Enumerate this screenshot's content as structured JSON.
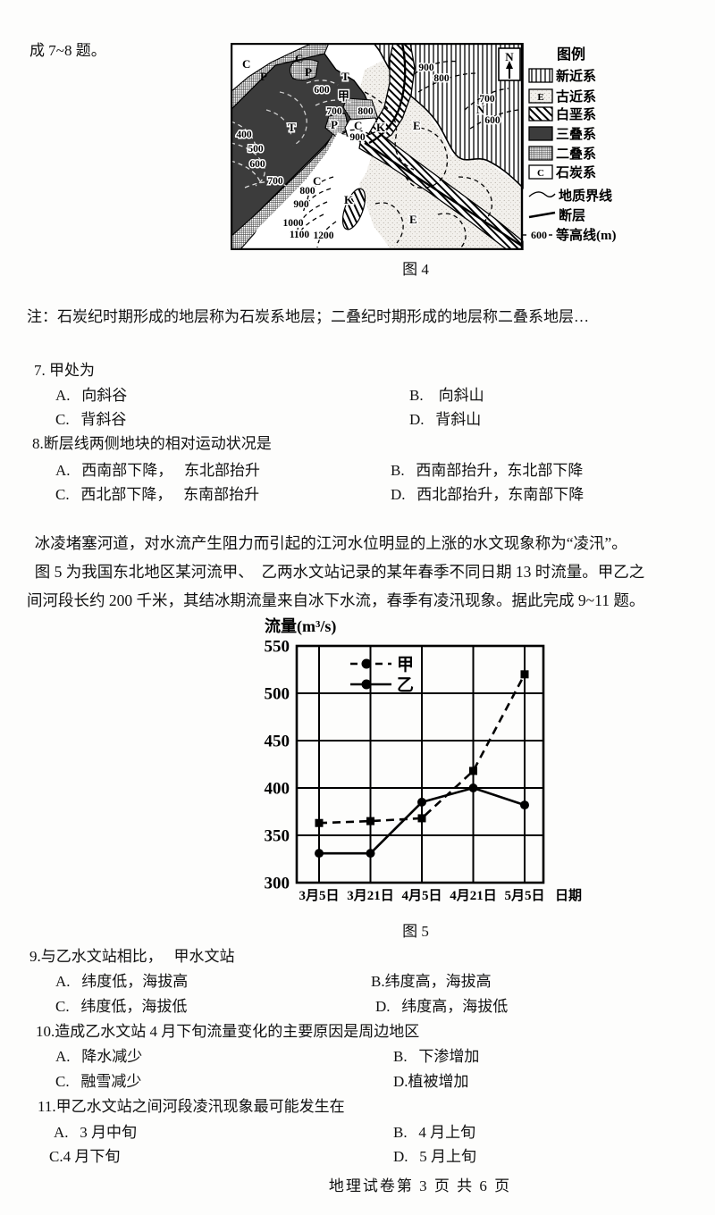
{
  "page": {
    "intro": "成 7~8 题。",
    "footer": "地理试卷第 3 页 共 6 页"
  },
  "note": "注：石炭纪时期形成的地层称为石炭系地层；二叠纪时期形成的地层称二叠系地层…",
  "passage": {
    "line1": "  冰凌堵塞河道，对水流产生阻力而引起的江河水位明显的上涨的水文现象称为“凌汛”。",
    "line2": "  图 5 为我国东北地区某河流甲、  乙两水文站记录的某年春季不同日期 13 时流量。甲乙之",
    "line3": "间河段长约 200 千米，其结冰期流量来自冰下水流，春季有凌汛现象。据此完成 9~11 题。"
  },
  "figure4": {
    "caption": "图 4",
    "map": {
      "letters": {
        "tl_c": "C",
        "tl_p": "P",
        "top_c": "C",
        "top_p": "P",
        "top_t": "T",
        "jia": "甲",
        "mid_t": "T",
        "mid_p": "P",
        "mid_c": "C",
        "mid_k": "K",
        "e_upper": "E",
        "n_letter": "N",
        "low_c": "C",
        "low_k": "K",
        "e_lower": "E",
        "north": "N"
      },
      "contours": {
        "v400": "400",
        "v500": "500",
        "v600l": "600",
        "v700l": "700",
        "v600c": "600",
        "v700c": "700",
        "v800c": "800",
        "v900c": "900",
        "v800b": "800",
        "v900b": "900",
        "v1000": "1000",
        "v1100": "1100",
        "v1200": "1200",
        "v900r": "900",
        "v800r": "800",
        "v700r": "700",
        "v600r": "600"
      }
    },
    "legend": {
      "title": "图例",
      "items": [
        {
          "label": "新近系"
        },
        {
          "label": "古近系",
          "symbol": "E"
        },
        {
          "label": "白垩系"
        },
        {
          "label": "三叠系"
        },
        {
          "label": "二叠系"
        },
        {
          "label": "石炭系",
          "symbol": "C"
        },
        {
          "label": "地质界线"
        },
        {
          "label": "断层"
        },
        {
          "label": "等高线(m)",
          "value": "600"
        }
      ]
    }
  },
  "questions": [
    {
      "stem": "7. 甲处为",
      "options": [
        "A.   向斜谷",
        "B.    向斜山",
        "C.   背斜谷",
        "D.   背斜山"
      ]
    },
    {
      "stem": "8.断层线两侧地块的相对运动状况是",
      "options": [
        "A.   西南部下降，   东北部抬升",
        "B.   西南部抬升，东北部下降",
        "C.   西北部下降，   东南部抬升",
        "D.   西北部抬升，东南部下降"
      ]
    },
    {
      "stem": "9.与乙水文站相比，   甲水文站",
      "options": [
        "A.   纬度低，海拔高",
        "B.纬度高，海拔高",
        "C.   纬度低，海拔低",
        "D.   纬度高，海拔低"
      ]
    },
    {
      "stem": "10.造成乙水文站 4 月下旬流量变化的主要原因是周边地区",
      "options": [
        "A.   降水减少",
        "B.   下渗增加",
        "C.   融雪减少",
        "D.植被增加"
      ]
    },
    {
      "stem": "11.甲乙水文站之间河段凌汛现象最可能发生在",
      "options": [
        "A.   3 月中旬",
        "B.   4 月上旬",
        "C.4 月下旬",
        "D.   5 月上旬"
      ]
    }
  ],
  "chart_data": {
    "type": "line",
    "title": "图 5",
    "ylabel": "流量(m³/s)",
    "xlabel": "日期",
    "categories": [
      "3月5日",
      "3月21日",
      "4月5日",
      "4月21日",
      "5月5日"
    ],
    "series": [
      {
        "name": "甲",
        "line": "dashed",
        "marker": "square",
        "values": [
          363,
          365,
          368,
          418,
          520
        ]
      },
      {
        "name": "乙",
        "line": "solid",
        "marker": "circle",
        "values": [
          331,
          331,
          385,
          400,
          382
        ]
      }
    ],
    "ylim": [
      300,
      550
    ],
    "ytick_step": 50,
    "grid": true,
    "legend_position": "top-left-inside"
  }
}
